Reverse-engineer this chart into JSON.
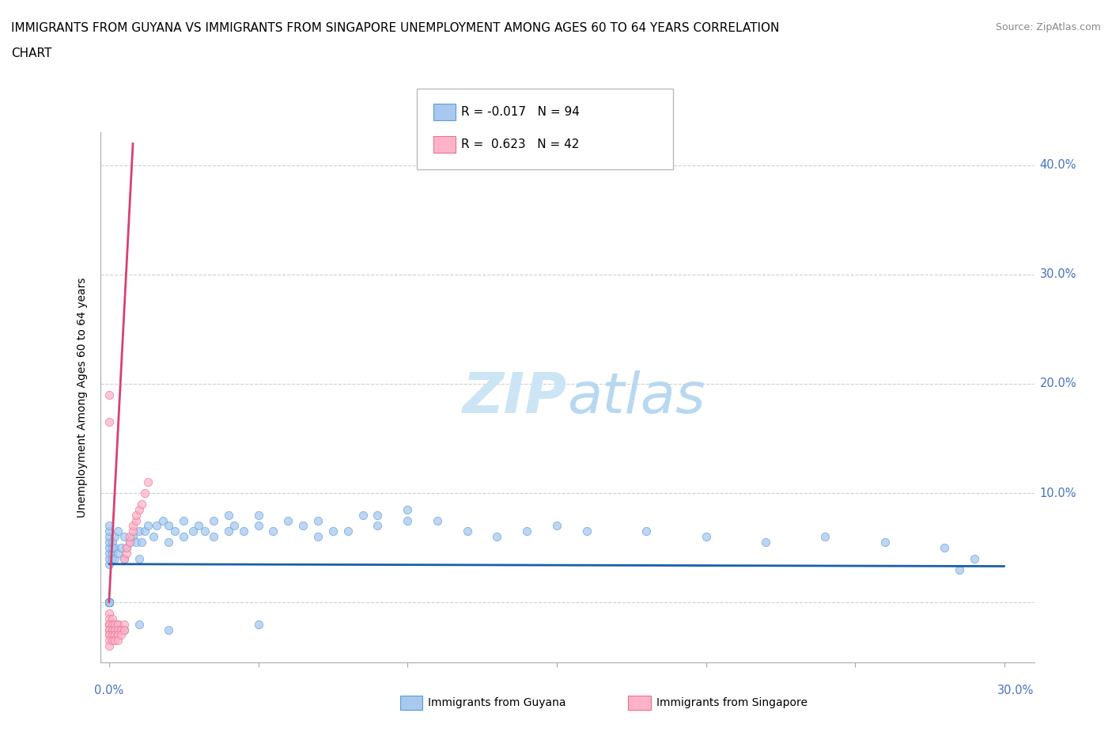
{
  "title_line1": "IMMIGRANTS FROM GUYANA VS IMMIGRANTS FROM SINGAPORE UNEMPLOYMENT AMONG AGES 60 TO 64 YEARS CORRELATION",
  "title_line2": "CHART",
  "source": "Source: ZipAtlas.com",
  "ylabel": "Unemployment Among Ages 60 to 64 years",
  "x_range": [
    -0.003,
    0.31
  ],
  "y_range": [
    -0.055,
    0.43
  ],
  "guyana_R": -0.017,
  "guyana_N": 94,
  "singapore_R": 0.623,
  "singapore_N": 42,
  "guyana_color": "#a8c8f0",
  "guyana_edge": "#5a9fd4",
  "singapore_color": "#ffb3c8",
  "singapore_edge": "#e87090",
  "trend_guyana_color": "#1a5fa8",
  "trend_singapore_color": "#d94070",
  "watermark_color": "#cce5f5",
  "tick_label_color": "#4472c4",
  "guyana_x": [
    0.0,
    0.0,
    0.0,
    0.0,
    0.0,
    0.0,
    0.0,
    0.0,
    0.0,
    0.0,
    0.0,
    0.0,
    0.0,
    0.0,
    0.0,
    0.0,
    0.0,
    0.0,
    0.0,
    0.0,
    0.001,
    0.001,
    0.001,
    0.001,
    0.002,
    0.002,
    0.002,
    0.003,
    0.003,
    0.004,
    0.005,
    0.005,
    0.006,
    0.007,
    0.008,
    0.009,
    0.01,
    0.01,
    0.011,
    0.012,
    0.013,
    0.015,
    0.016,
    0.018,
    0.02,
    0.02,
    0.022,
    0.025,
    0.025,
    0.028,
    0.03,
    0.032,
    0.035,
    0.035,
    0.04,
    0.04,
    0.042,
    0.045,
    0.05,
    0.05,
    0.055,
    0.06,
    0.065,
    0.07,
    0.07,
    0.075,
    0.08,
    0.085,
    0.09,
    0.09,
    0.1,
    0.1,
    0.11,
    0.12,
    0.13,
    0.14,
    0.15,
    0.16,
    0.18,
    0.2,
    0.22,
    0.24,
    0.26,
    0.28,
    0.285,
    0.29,
    0.0,
    0.001,
    0.002,
    0.003,
    0.005,
    0.01,
    0.02,
    0.05
  ],
  "guyana_y": [
    0.0,
    0.0,
    0.0,
    0.0,
    0.0,
    0.0,
    0.0,
    0.0,
    0.0,
    0.0,
    0.0,
    0.0,
    0.035,
    0.04,
    0.045,
    0.05,
    0.055,
    0.06,
    0.065,
    0.07,
    0.04,
    0.045,
    0.05,
    0.055,
    0.04,
    0.05,
    0.06,
    0.045,
    0.065,
    0.05,
    0.04,
    0.06,
    0.05,
    0.055,
    0.06,
    0.055,
    0.04,
    0.065,
    0.055,
    0.065,
    0.07,
    0.06,
    0.07,
    0.075,
    0.055,
    0.07,
    0.065,
    0.06,
    0.075,
    0.065,
    0.07,
    0.065,
    0.06,
    0.075,
    0.065,
    0.08,
    0.07,
    0.065,
    0.07,
    0.08,
    0.065,
    0.075,
    0.07,
    0.06,
    0.075,
    0.065,
    0.065,
    0.08,
    0.07,
    0.08,
    0.075,
    0.085,
    0.075,
    0.065,
    0.06,
    0.065,
    0.07,
    0.065,
    0.065,
    0.06,
    0.055,
    0.06,
    0.055,
    0.05,
    0.03,
    0.04,
    -0.02,
    -0.025,
    -0.03,
    -0.02,
    -0.025,
    -0.02,
    -0.025,
    -0.02
  ],
  "singapore_x": [
    0.0,
    0.0,
    0.0,
    0.0,
    0.0,
    0.0,
    0.0,
    0.0,
    0.0,
    0.0,
    0.0,
    0.0,
    0.001,
    0.001,
    0.001,
    0.001,
    0.001,
    0.002,
    0.002,
    0.002,
    0.002,
    0.003,
    0.003,
    0.003,
    0.003,
    0.004,
    0.004,
    0.005,
    0.005,
    0.005,
    0.006,
    0.006,
    0.007,
    0.007,
    0.008,
    0.008,
    0.009,
    0.009,
    0.01,
    0.011,
    0.012,
    0.013
  ],
  "singapore_y": [
    -0.01,
    -0.015,
    -0.02,
    -0.02,
    -0.025,
    -0.025,
    -0.03,
    -0.03,
    -0.035,
    -0.04,
    0.165,
    0.19,
    -0.015,
    -0.02,
    -0.025,
    -0.03,
    -0.035,
    -0.02,
    -0.025,
    -0.03,
    -0.035,
    -0.02,
    -0.025,
    -0.03,
    -0.035,
    -0.025,
    -0.03,
    -0.02,
    -0.025,
    0.04,
    0.045,
    0.05,
    0.055,
    0.06,
    0.065,
    0.07,
    0.075,
    0.08,
    0.085,
    0.09,
    0.1,
    0.11
  ]
}
